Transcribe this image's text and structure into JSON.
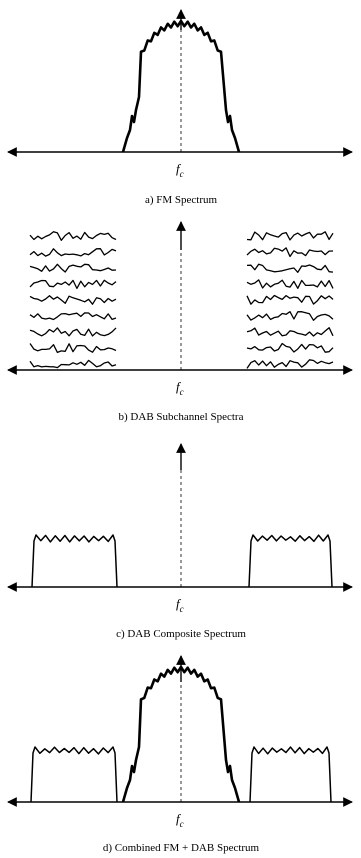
{
  "panels": [
    {
      "id": "a",
      "center_label": "fc",
      "caption": "a)  FM Spectrum"
    },
    {
      "id": "b",
      "center_label": "fc",
      "caption": "b)  DAB Subchannel Spectra"
    },
    {
      "id": "c",
      "center_label": "fc",
      "caption": "c)  DAB Composite Spectrum"
    },
    {
      "id": "d",
      "center_label": "fc",
      "caption": "d)  Combined FM + DAB Spectrum"
    }
  ],
  "colors": {
    "ink": "#000000",
    "background": "#ffffff"
  }
}
